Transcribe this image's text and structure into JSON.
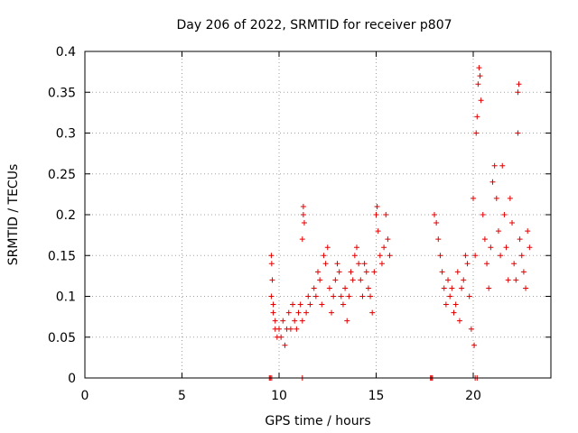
{
  "chart_data": {
    "type": "scatter",
    "title": "Day 206 of 2022, SRMTID for receiver p807",
    "xlabel": "GPS time / hours",
    "ylabel": "SRMTID / TECUs",
    "xlim": [
      0,
      24
    ],
    "ylim": [
      0,
      0.4
    ],
    "x_ticks": [
      0,
      5,
      10,
      15,
      20
    ],
    "x_tick_labels": [
      "0",
      "5",
      "10",
      "15",
      "20"
    ],
    "y_ticks": [
      0,
      0.05,
      0.1,
      0.15,
      0.2,
      0.25,
      0.3,
      0.35,
      0.4
    ],
    "y_tick_labels": [
      "0",
      "0.05",
      "0.1",
      "0.15",
      "0.2",
      "0.25",
      "0.3",
      "0.35",
      "0.4"
    ],
    "grid": true,
    "marker": "plus",
    "marker_color": "#e00000",
    "series": [
      {
        "name": "SRMTID",
        "points": [
          [
            9.5,
            0.0
          ],
          [
            9.55,
            0.0
          ],
          [
            9.62,
            0.0
          ],
          [
            11.2,
            0.0
          ],
          [
            17.8,
            0.0
          ],
          [
            17.85,
            0.0
          ],
          [
            17.9,
            0.0
          ],
          [
            20.1,
            0.0
          ],
          [
            20.2,
            0.0
          ],
          [
            9.6,
            0.15
          ],
          [
            9.62,
            0.14
          ],
          [
            9.65,
            0.12
          ],
          [
            9.6,
            0.1
          ],
          [
            9.7,
            0.09
          ],
          [
            9.7,
            0.08
          ],
          [
            9.8,
            0.07
          ],
          [
            9.8,
            0.06
          ],
          [
            9.9,
            0.05
          ],
          [
            10.0,
            0.06
          ],
          [
            10.1,
            0.05
          ],
          [
            10.2,
            0.07
          ],
          [
            10.3,
            0.04
          ],
          [
            10.4,
            0.06
          ],
          [
            10.5,
            0.08
          ],
          [
            10.6,
            0.06
          ],
          [
            10.7,
            0.09
          ],
          [
            10.8,
            0.07
          ],
          [
            10.9,
            0.06
          ],
          [
            11.0,
            0.08
          ],
          [
            11.1,
            0.09
          ],
          [
            11.2,
            0.07
          ],
          [
            11.25,
            0.2
          ],
          [
            11.25,
            0.21
          ],
          [
            11.3,
            0.19
          ],
          [
            11.2,
            0.17
          ],
          [
            11.4,
            0.08
          ],
          [
            11.5,
            0.1
          ],
          [
            11.6,
            0.09
          ],
          [
            11.8,
            0.11
          ],
          [
            11.9,
            0.1
          ],
          [
            12.0,
            0.13
          ],
          [
            12.1,
            0.12
          ],
          [
            12.2,
            0.09
          ],
          [
            12.3,
            0.15
          ],
          [
            12.4,
            0.14
          ],
          [
            12.5,
            0.16
          ],
          [
            12.6,
            0.11
          ],
          [
            12.7,
            0.08
          ],
          [
            12.8,
            0.1
          ],
          [
            12.9,
            0.12
          ],
          [
            13.0,
            0.14
          ],
          [
            13.1,
            0.13
          ],
          [
            13.2,
            0.1
          ],
          [
            13.3,
            0.09
          ],
          [
            13.4,
            0.11
          ],
          [
            13.5,
            0.07
          ],
          [
            13.6,
            0.1
          ],
          [
            13.7,
            0.13
          ],
          [
            13.8,
            0.12
          ],
          [
            13.9,
            0.15
          ],
          [
            14.0,
            0.16
          ],
          [
            14.1,
            0.14
          ],
          [
            14.2,
            0.12
          ],
          [
            14.3,
            0.1
          ],
          [
            14.4,
            0.14
          ],
          [
            14.5,
            0.13
          ],
          [
            14.6,
            0.11
          ],
          [
            14.7,
            0.1
          ],
          [
            14.8,
            0.08
          ],
          [
            14.9,
            0.13
          ],
          [
            15.0,
            0.2
          ],
          [
            15.05,
            0.21
          ],
          [
            15.1,
            0.18
          ],
          [
            15.2,
            0.15
          ],
          [
            15.3,
            0.14
          ],
          [
            15.4,
            0.16
          ],
          [
            15.5,
            0.2
          ],
          [
            15.6,
            0.17
          ],
          [
            15.7,
            0.15
          ],
          [
            18.0,
            0.2
          ],
          [
            18.1,
            0.19
          ],
          [
            18.2,
            0.17
          ],
          [
            18.3,
            0.15
          ],
          [
            18.4,
            0.13
          ],
          [
            18.5,
            0.11
          ],
          [
            18.6,
            0.09
          ],
          [
            18.7,
            0.12
          ],
          [
            18.8,
            0.1
          ],
          [
            18.9,
            0.11
          ],
          [
            19.0,
            0.08
          ],
          [
            19.1,
            0.09
          ],
          [
            19.2,
            0.13
          ],
          [
            19.3,
            0.07
          ],
          [
            19.4,
            0.11
          ],
          [
            19.5,
            0.12
          ],
          [
            19.6,
            0.15
          ],
          [
            19.7,
            0.14
          ],
          [
            19.8,
            0.1
          ],
          [
            19.9,
            0.06
          ],
          [
            20.0,
            0.22
          ],
          [
            20.05,
            0.04
          ],
          [
            20.1,
            0.15
          ],
          [
            20.15,
            0.3
          ],
          [
            20.2,
            0.32
          ],
          [
            20.25,
            0.36
          ],
          [
            20.3,
            0.38
          ],
          [
            20.35,
            0.37
          ],
          [
            20.4,
            0.34
          ],
          [
            20.5,
            0.2
          ],
          [
            20.6,
            0.17
          ],
          [
            20.7,
            0.14
          ],
          [
            20.8,
            0.11
          ],
          [
            20.9,
            0.16
          ],
          [
            21.0,
            0.24
          ],
          [
            21.1,
            0.26
          ],
          [
            21.2,
            0.22
          ],
          [
            21.3,
            0.18
          ],
          [
            21.4,
            0.15
          ],
          [
            21.5,
            0.26
          ],
          [
            21.6,
            0.2
          ],
          [
            21.7,
            0.16
          ],
          [
            21.8,
            0.12
          ],
          [
            21.9,
            0.22
          ],
          [
            22.0,
            0.19
          ],
          [
            22.1,
            0.14
          ],
          [
            22.2,
            0.12
          ],
          [
            22.3,
            0.35
          ],
          [
            22.35,
            0.36
          ],
          [
            22.3,
            0.3
          ],
          [
            22.4,
            0.17
          ],
          [
            22.5,
            0.15
          ],
          [
            22.6,
            0.13
          ],
          [
            22.7,
            0.11
          ],
          [
            22.8,
            0.18
          ],
          [
            22.9,
            0.16
          ]
        ]
      }
    ]
  }
}
